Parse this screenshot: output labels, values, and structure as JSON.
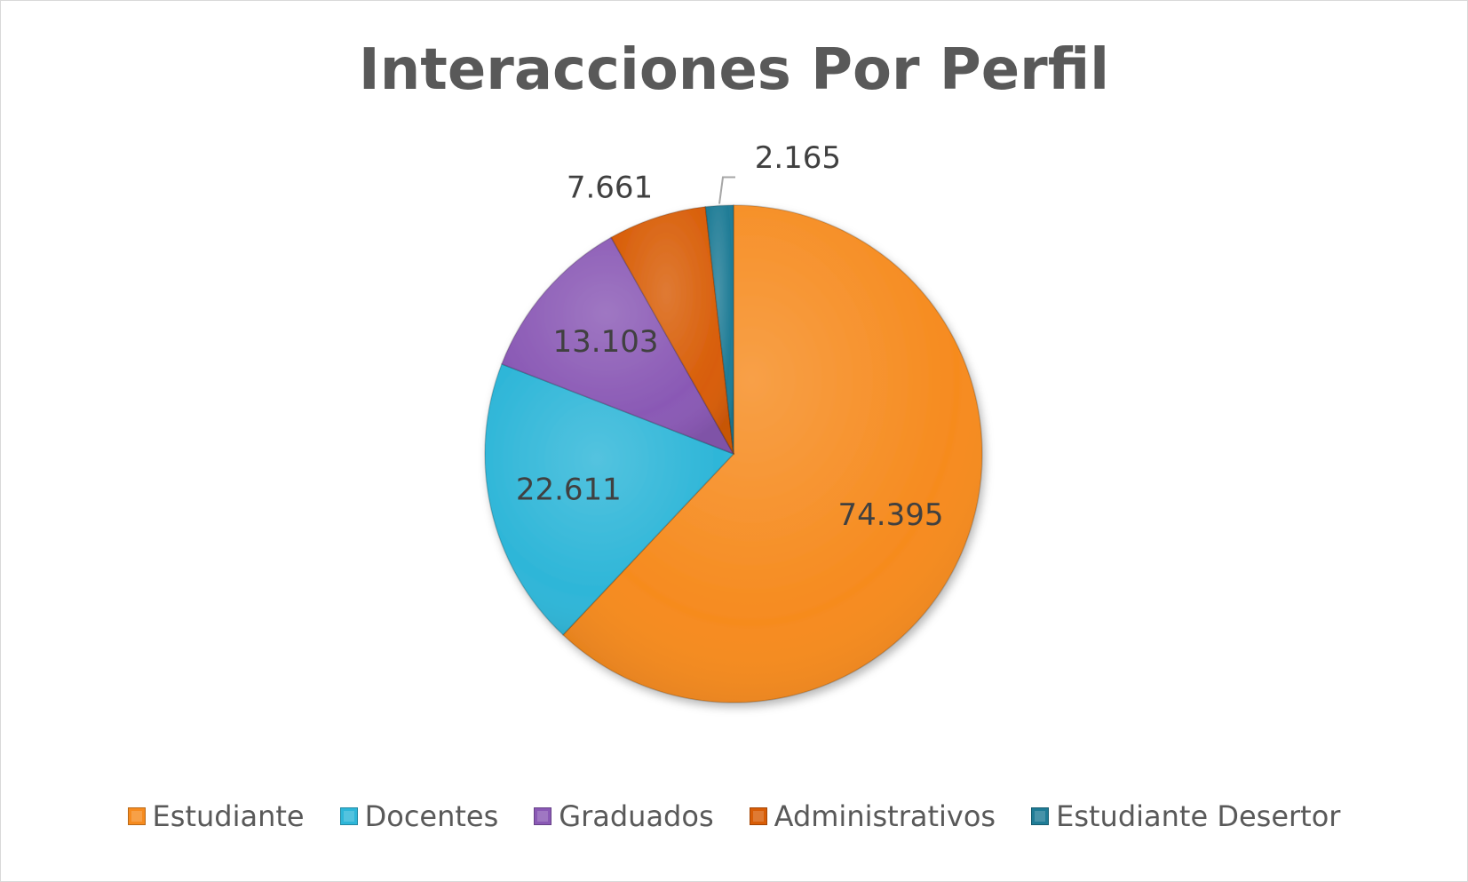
{
  "chart_data": {
    "type": "pie",
    "title": "Interacciones Por Perfil",
    "categories": [
      "Estudiante",
      "Docentes",
      "Graduados",
      "Administrativos",
      "Estudiante Desertor"
    ],
    "values": [
      74395,
      22611,
      13103,
      7661,
      2165
    ],
    "data_labels": [
      "74.395",
      "22.611",
      "13.103",
      "7.661",
      "2.165"
    ],
    "colors": [
      "#f68b1f",
      "#2eb6d8",
      "#8a59b5",
      "#d85d07",
      "#1f7c96"
    ],
    "start_angle": "12 o'clock",
    "direction": "clockwise",
    "legend_position": "bottom"
  }
}
